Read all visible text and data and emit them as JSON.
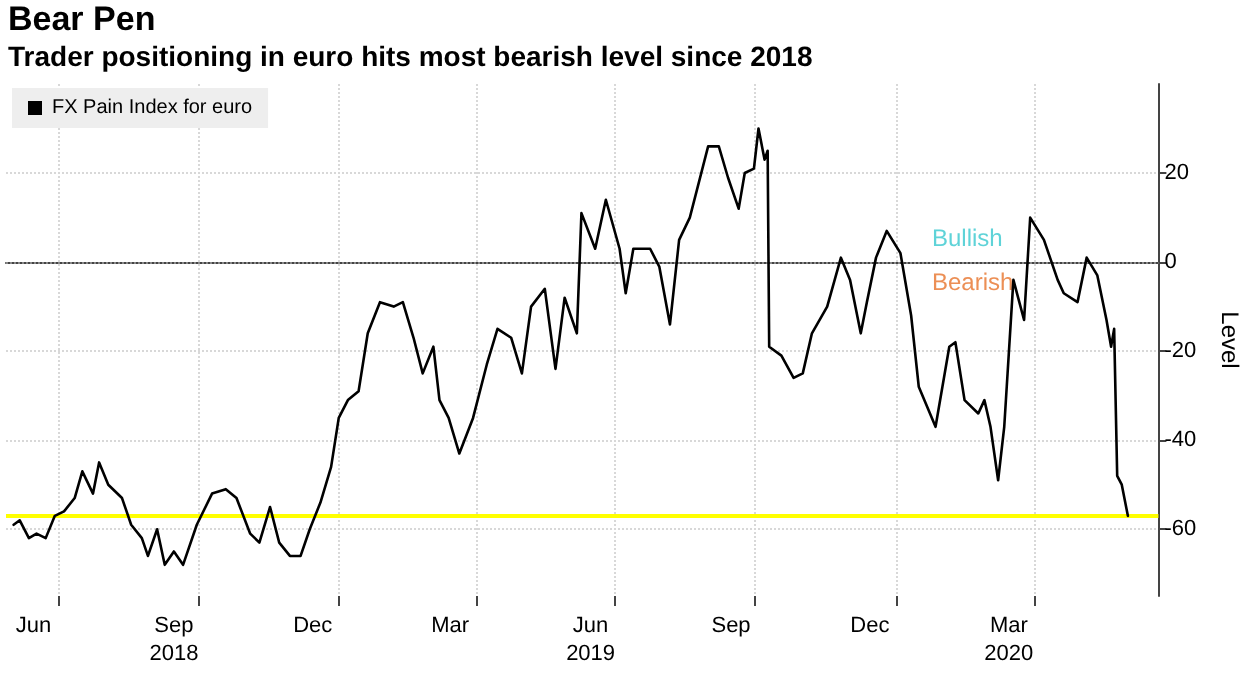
{
  "chart_data": {
    "type": "line",
    "title": "Bear Pen",
    "subtitle": "Trader positioning in euro hits most bearish level since 2018",
    "ylabel": "Level",
    "annotations": [
      "Bullish",
      "Bearish"
    ],
    "x": [
      "2018-06-02",
      "2018-06-06",
      "2018-06-12",
      "2018-06-17",
      "2018-06-23",
      "2018-06-29",
      "2018-07-05",
      "2018-07-12",
      "2018-07-17",
      "2018-07-24",
      "2018-07-28",
      "2018-08-03",
      "2018-08-12",
      "2018-08-18",
      "2018-08-25",
      "2018-08-29",
      "2018-09-04",
      "2018-09-09",
      "2018-09-15",
      "2018-09-21",
      "2018-09-30",
      "2018-10-10",
      "2018-10-19",
      "2018-10-26",
      "2018-11-04",
      "2018-11-10",
      "2018-11-17",
      "2018-11-23",
      "2018-11-30",
      "2018-12-07",
      "2018-12-13",
      "2018-12-20",
      "2018-12-27",
      "2019-01-01",
      "2019-01-07",
      "2019-01-14",
      "2019-01-20",
      "2019-01-28",
      "2019-02-06",
      "2019-02-12",
      "2019-02-19",
      "2019-02-25",
      "2019-03-04",
      "2019-03-08",
      "2019-03-14",
      "2019-03-21",
      "2019-03-30",
      "2019-04-08",
      "2019-04-15",
      "2019-04-24",
      "2019-05-01",
      "2019-05-07",
      "2019-05-16",
      "2019-05-23",
      "2019-05-29",
      "2019-06-06",
      "2019-06-09",
      "2019-06-18",
      "2019-06-25",
      "2019-07-04",
      "2019-07-08",
      "2019-07-13",
      "2019-07-24",
      "2019-07-30",
      "2019-08-06",
      "2019-08-12",
      "2019-08-19",
      "2019-08-31",
      "2019-09-07",
      "2019-09-13",
      "2019-09-20",
      "2019-09-24",
      "2019-09-30",
      "2019-10-03",
      "2019-10-07",
      "2019-10-09",
      "2019-10-10",
      "2019-10-18",
      "2019-10-26",
      "2019-11-01",
      "2019-11-07",
      "2019-11-17",
      "2019-11-26",
      "2019-12-02",
      "2019-12-09",
      "2019-12-13",
      "2019-12-19",
      "2019-12-26",
      "2020-01-04",
      "2020-01-11",
      "2020-01-16",
      "2020-01-27",
      "2020-02-05",
      "2020-02-09",
      "2020-02-15",
      "2020-02-24",
      "2020-02-28",
      "2020-03-03",
      "2020-03-08",
      "2020-03-12",
      "2020-03-18",
      "2020-03-25",
      "2020-03-29",
      "2020-04-07",
      "2020-04-16",
      "2020-04-20",
      "2020-04-29",
      "2020-05-05",
      "2020-05-12",
      "2020-05-18",
      "2020-05-21",
      "2020-05-23",
      "2020-05-25",
      "2020-05-28",
      "2020-06-01"
    ],
    "series": [
      {
        "name": "FX Pain Index for euro",
        "color": "#000000",
        "values": [
          -59,
          -58,
          -62,
          -61,
          -62,
          -57,
          -56,
          -53,
          -47,
          -52,
          -45,
          -50,
          -53,
          -59,
          -62,
          -66,
          -60,
          -68,
          -65,
          -68,
          -59,
          -52,
          -51,
          -53,
          -61,
          -63,
          -55,
          -63,
          -66,
          -66,
          -60,
          -54,
          -46,
          -35,
          -31,
          -29,
          -16,
          -9,
          -10,
          -9,
          -17,
          -25,
          -19,
          -31,
          -35,
          -43,
          -35,
          -23,
          -15,
          -17,
          -25,
          -10,
          -6,
          -24,
          -8,
          -16,
          11,
          3,
          14,
          3,
          -7,
          3,
          3,
          -1,
          -14,
          5,
          10,
          26,
          26,
          19,
          12,
          20,
          21,
          30,
          23,
          25,
          -19,
          -21,
          -26,
          -25,
          -16,
          -10,
          1,
          -4,
          -16,
          -9,
          1,
          7,
          2,
          -12,
          -28,
          -37,
          -19,
          -18,
          -31,
          -34,
          -31,
          -37,
          -49,
          -37,
          -4,
          -13,
          10,
          5,
          -4,
          -7,
          -9,
          1,
          -3,
          -13,
          -19,
          -15,
          -48,
          -50,
          -57
        ]
      }
    ],
    "xlim": [
      "2018-05-28",
      "2020-06-21"
    ],
    "xticks": [
      {
        "value": "2018-06-15",
        "label": "Jun"
      },
      {
        "value": "2018-07-01",
        "label": null
      },
      {
        "value": "2018-09-15",
        "label": "Sep\n2018"
      },
      {
        "value": "2018-10-01",
        "label": null
      },
      {
        "value": "2018-12-15",
        "label": "Dec"
      },
      {
        "value": "2019-01-01",
        "label": null
      },
      {
        "value": "2019-03-15",
        "label": "Mar"
      },
      {
        "value": "2019-04-01",
        "label": null
      },
      {
        "value": "2019-06-15",
        "label": "Jun\n2019"
      },
      {
        "value": "2019-07-01",
        "label": null
      },
      {
        "value": "2019-09-15",
        "label": "Sep"
      },
      {
        "value": "2019-10-01",
        "label": null
      },
      {
        "value": "2019-12-15",
        "label": "Dec"
      },
      {
        "value": "2020-01-01",
        "label": null
      },
      {
        "value": "2020-03-15",
        "label": "Mar\n2020"
      },
      {
        "value": "2020-04-01",
        "label": null
      }
    ],
    "ylim": [
      -75,
      40
    ],
    "yticks": [
      -60,
      -40,
      -20,
      0,
      20
    ],
    "ref_lines": [
      {
        "axis": "y",
        "value": 0,
        "color": "#888888",
        "line_style": "dotted"
      },
      {
        "axis": "y",
        "value": -57,
        "color": "#ffff00",
        "line_style": "solid"
      }
    ],
    "grid": true,
    "legend": "top left",
    "marker": "none",
    "line_style": "solid"
  }
}
